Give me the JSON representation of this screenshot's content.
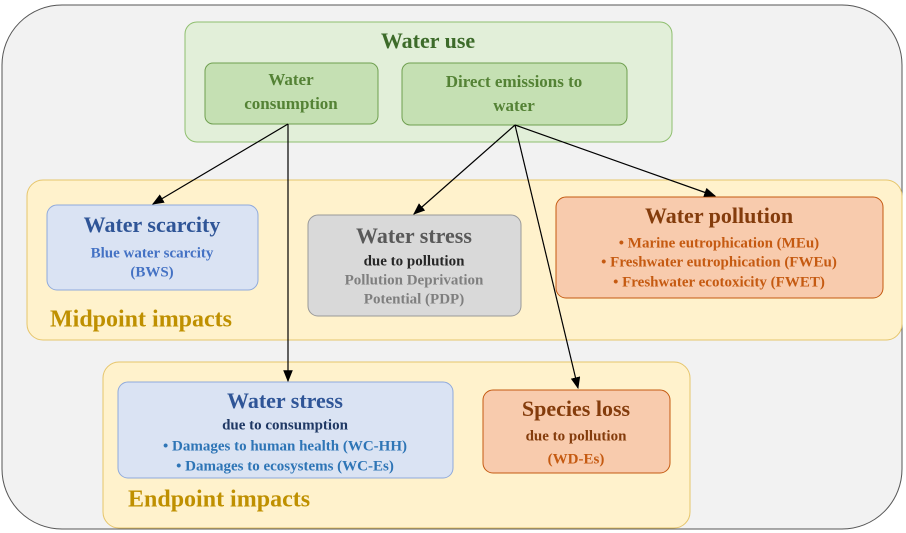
{
  "water_use": {
    "title": "Water use",
    "consumption": [
      "Water",
      "consumption"
    ],
    "emissions": [
      "Direct emissions to",
      "water"
    ]
  },
  "midpoint": {
    "label": "Midpoint impacts",
    "scarcity": {
      "title": "Water scarcity",
      "lines": [
        "Blue water scarcity",
        "(BWS)"
      ]
    },
    "stress": {
      "title": "Water stress",
      "lines": [
        "due to pollution",
        "Pollution Deprivation",
        "Potential (PDP)"
      ]
    },
    "pollution": {
      "title": "Water pollution",
      "lines": [
        "• Marine eutrophication (MEu)",
        "• Freshwater eutrophication (FWEu)",
        "• Freshwater ecotoxicity (FWET)"
      ]
    }
  },
  "endpoint": {
    "label": "Endpoint impacts",
    "stress": {
      "title": "Water stress",
      "lines": [
        "due to consumption",
        "• Damages to human health (WC-HH)",
        "• Damages to ecosystems (WC-Es)"
      ]
    },
    "species": {
      "title": "Species loss",
      "lines": [
        "due to pollution",
        "(WD-Es)"
      ]
    }
  }
}
